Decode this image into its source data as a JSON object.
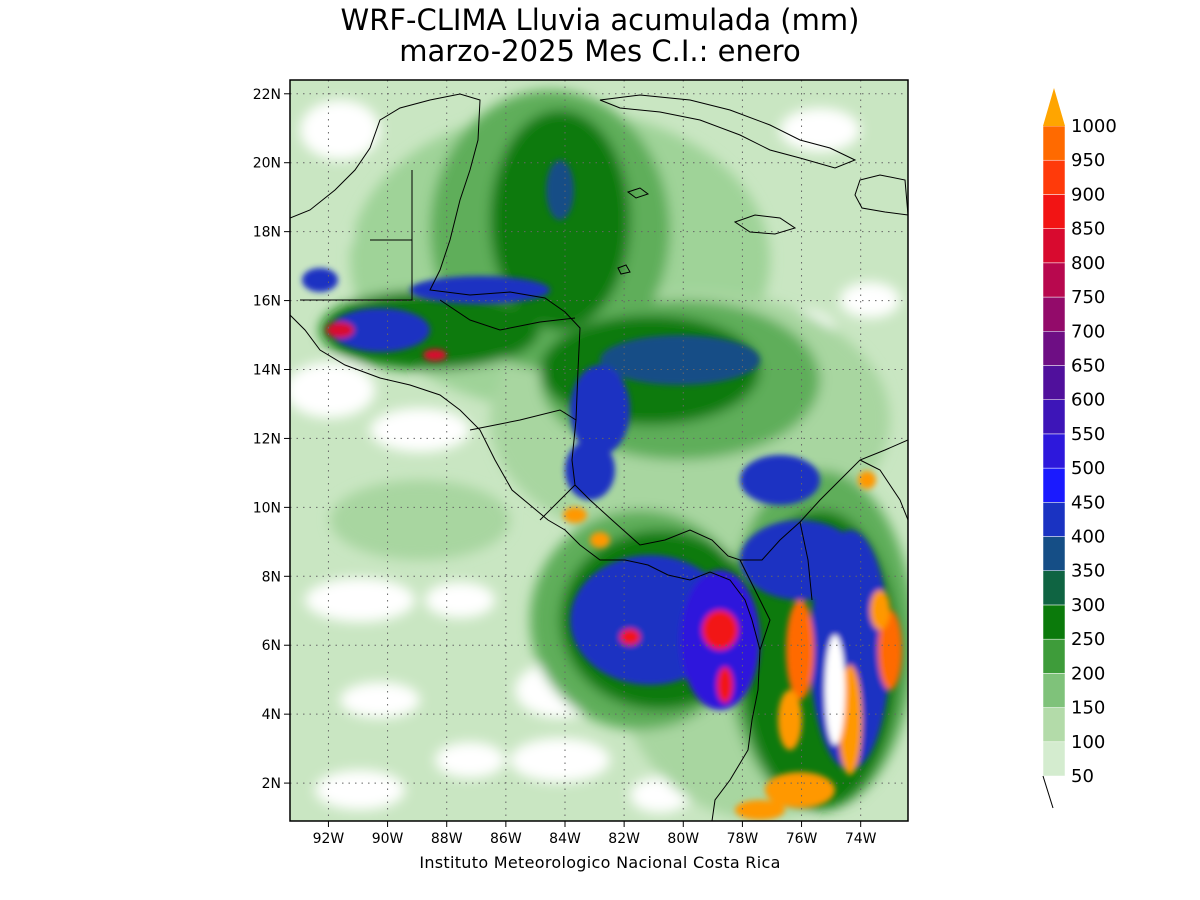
{
  "title": {
    "line1": "WRF-CLIMA Lluvia acumulada (mm)",
    "line2": "marzo-2025 Mes C.I.: enero"
  },
  "credit": "Instituto Meteorologico Nacional Costa Rica",
  "map": {
    "lon_range": [
      -93.3,
      -72.4
    ],
    "lat_range": [
      0.9,
      22.4
    ],
    "lon_ticks": [
      {
        "value": -92,
        "label": "92W"
      },
      {
        "value": -90,
        "label": "90W"
      },
      {
        "value": -88,
        "label": "88W"
      },
      {
        "value": -86,
        "label": "86W"
      },
      {
        "value": -84,
        "label": "84W"
      },
      {
        "value": -82,
        "label": "82W"
      },
      {
        "value": -80,
        "label": "80W"
      },
      {
        "value": -78,
        "label": "78W"
      },
      {
        "value": -76,
        "label": "76W"
      },
      {
        "value": -74,
        "label": "74W"
      }
    ],
    "lat_ticks": [
      {
        "value": 2,
        "label": "2N"
      },
      {
        "value": 4,
        "label": "4N"
      },
      {
        "value": 6,
        "label": "6N"
      },
      {
        "value": 8,
        "label": "8N"
      },
      {
        "value": 10,
        "label": "10N"
      },
      {
        "value": 12,
        "label": "12N"
      },
      {
        "value": 14,
        "label": "14N"
      },
      {
        "value": 16,
        "label": "16N"
      },
      {
        "value": 18,
        "label": "18N"
      },
      {
        "value": 20,
        "label": "20N"
      },
      {
        "value": 22,
        "label": "22N"
      }
    ],
    "gridlines": "dotted"
  },
  "colorbar": {
    "extend": "max",
    "levels": [
      {
        "value": "50",
        "color": "#d4eccf"
      },
      {
        "value": "100",
        "color": "#b3dba9"
      },
      {
        "value": "150",
        "color": "#7fc27a"
      },
      {
        "value": "200",
        "color": "#3e9c3a"
      },
      {
        "value": "250",
        "color": "#0b7a0b"
      },
      {
        "value": "300",
        "color": "#0f6442"
      },
      {
        "value": "350",
        "color": "#154e86"
      },
      {
        "value": "400",
        "color": "#1a33c2"
      },
      {
        "value": "450",
        "color": "#1a1aff"
      },
      {
        "value": "500",
        "color": "#2d18dc"
      },
      {
        "value": "550",
        "color": "#3d15b8"
      },
      {
        "value": "600",
        "color": "#50109c"
      },
      {
        "value": "650",
        "color": "#6e0e84"
      },
      {
        "value": "700",
        "color": "#930b6a"
      },
      {
        "value": "750",
        "color": "#b8084e"
      },
      {
        "value": "800",
        "color": "#d80a2f"
      },
      {
        "value": "850",
        "color": "#f21414"
      },
      {
        "value": "900",
        "color": "#ff3a0a"
      },
      {
        "value": "950",
        "color": "#ff6a00"
      },
      {
        "value": "1000",
        "color": "#ff9800"
      }
    ],
    "extend_color": "#ffa500"
  }
}
